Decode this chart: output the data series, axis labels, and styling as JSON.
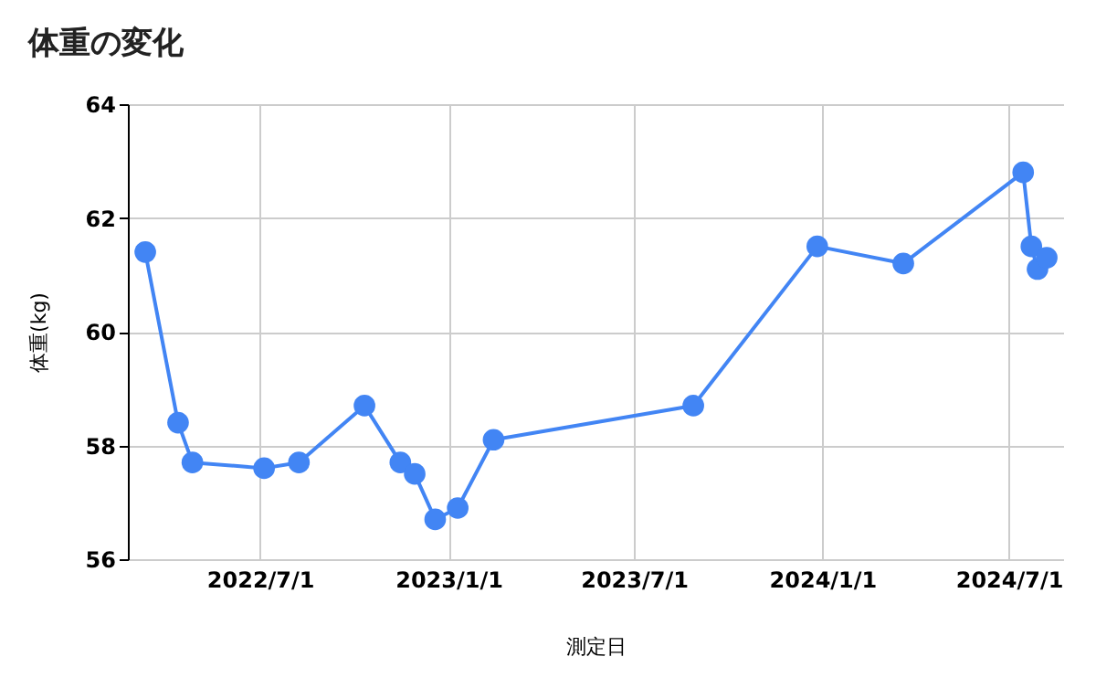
{
  "chart_data": {
    "type": "line",
    "title": "体重の変化",
    "xlabel": "測定日",
    "ylabel": "体重(kg)",
    "x": [
      "2022-03-11",
      "2022-04-12",
      "2022-04-26",
      "2022-07-05",
      "2022-08-08",
      "2022-10-11",
      "2022-11-15",
      "2022-11-29",
      "2022-12-19",
      "2023-01-10",
      "2023-02-14",
      "2023-08-28",
      "2023-12-27",
      "2024-03-20",
      "2024-07-15",
      "2024-07-23",
      "2024-07-29",
      "2024-08-07"
    ],
    "series": [
      {
        "color": "#4285f4",
        "values": [
          61.4,
          58.4,
          57.7,
          57.6,
          57.7,
          58.7,
          57.7,
          57.5,
          56.7,
          56.9,
          58.1,
          58.7,
          61.5,
          61.2,
          62.8,
          61.5,
          61.1,
          61.3
        ]
      }
    ],
    "xlim": [
      "2022-02-22",
      "2024-08-23"
    ],
    "xticks": [
      {
        "value": "2022-07-01",
        "label": "2022/7/1"
      },
      {
        "value": "2023-01-01",
        "label": "2023/1/1"
      },
      {
        "value": "2023-07-01",
        "label": "2023/7/1"
      },
      {
        "value": "2024-01-01",
        "label": "2024/1/1"
      },
      {
        "value": "2024-07-01",
        "label": "2024/7/1"
      }
    ],
    "ylim": [
      56,
      64
    ],
    "yticks": [
      56,
      58,
      60,
      62,
      64
    ],
    "grid": true,
    "legend": false,
    "marker": "circle",
    "line_style": "solid"
  }
}
